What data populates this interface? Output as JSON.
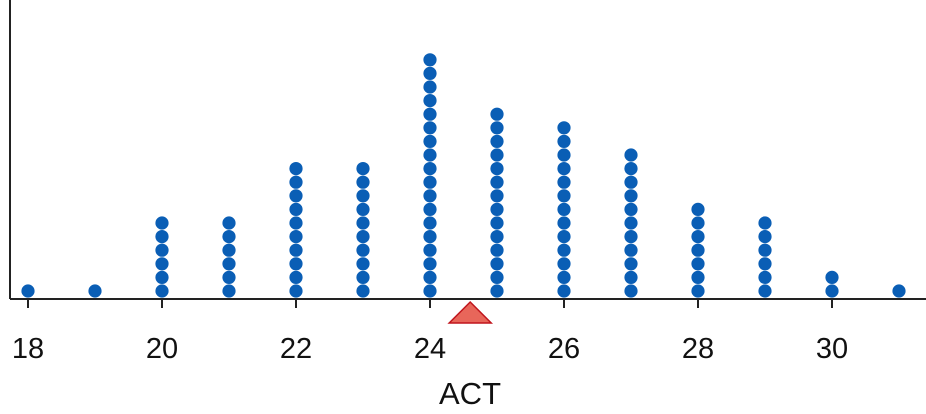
{
  "chart_data": {
    "type": "dot plot",
    "xlabel": "ACT",
    "ylabel": "",
    "title": "",
    "x_ticks": [
      18,
      20,
      22,
      24,
      26,
      28,
      30
    ],
    "x_tick_labels": [
      "18",
      "20",
      "22",
      "24",
      "26",
      "28",
      "30"
    ],
    "xlim": [
      18,
      31
    ],
    "points": [
      {
        "x": 18,
        "count": 1
      },
      {
        "x": 19,
        "count": 1
      },
      {
        "x": 20,
        "count": 6
      },
      {
        "x": 21,
        "count": 6
      },
      {
        "x": 22,
        "count": 10
      },
      {
        "x": 23,
        "count": 10
      },
      {
        "x": 24,
        "count": 18
      },
      {
        "x": 25,
        "count": 14
      },
      {
        "x": 26,
        "count": 13
      },
      {
        "x": 27,
        "count": 11
      },
      {
        "x": 28,
        "count": 7
      },
      {
        "x": 29,
        "count": 6
      },
      {
        "x": 30,
        "count": 2
      },
      {
        "x": 31,
        "count": 1
      }
    ],
    "balance_marker": {
      "x": 24.6
    },
    "colors": {
      "dots": "#0a5eb5",
      "marker_fill": "#e8665a",
      "marker_stroke": "#c0141c",
      "axis": "#222222"
    }
  }
}
